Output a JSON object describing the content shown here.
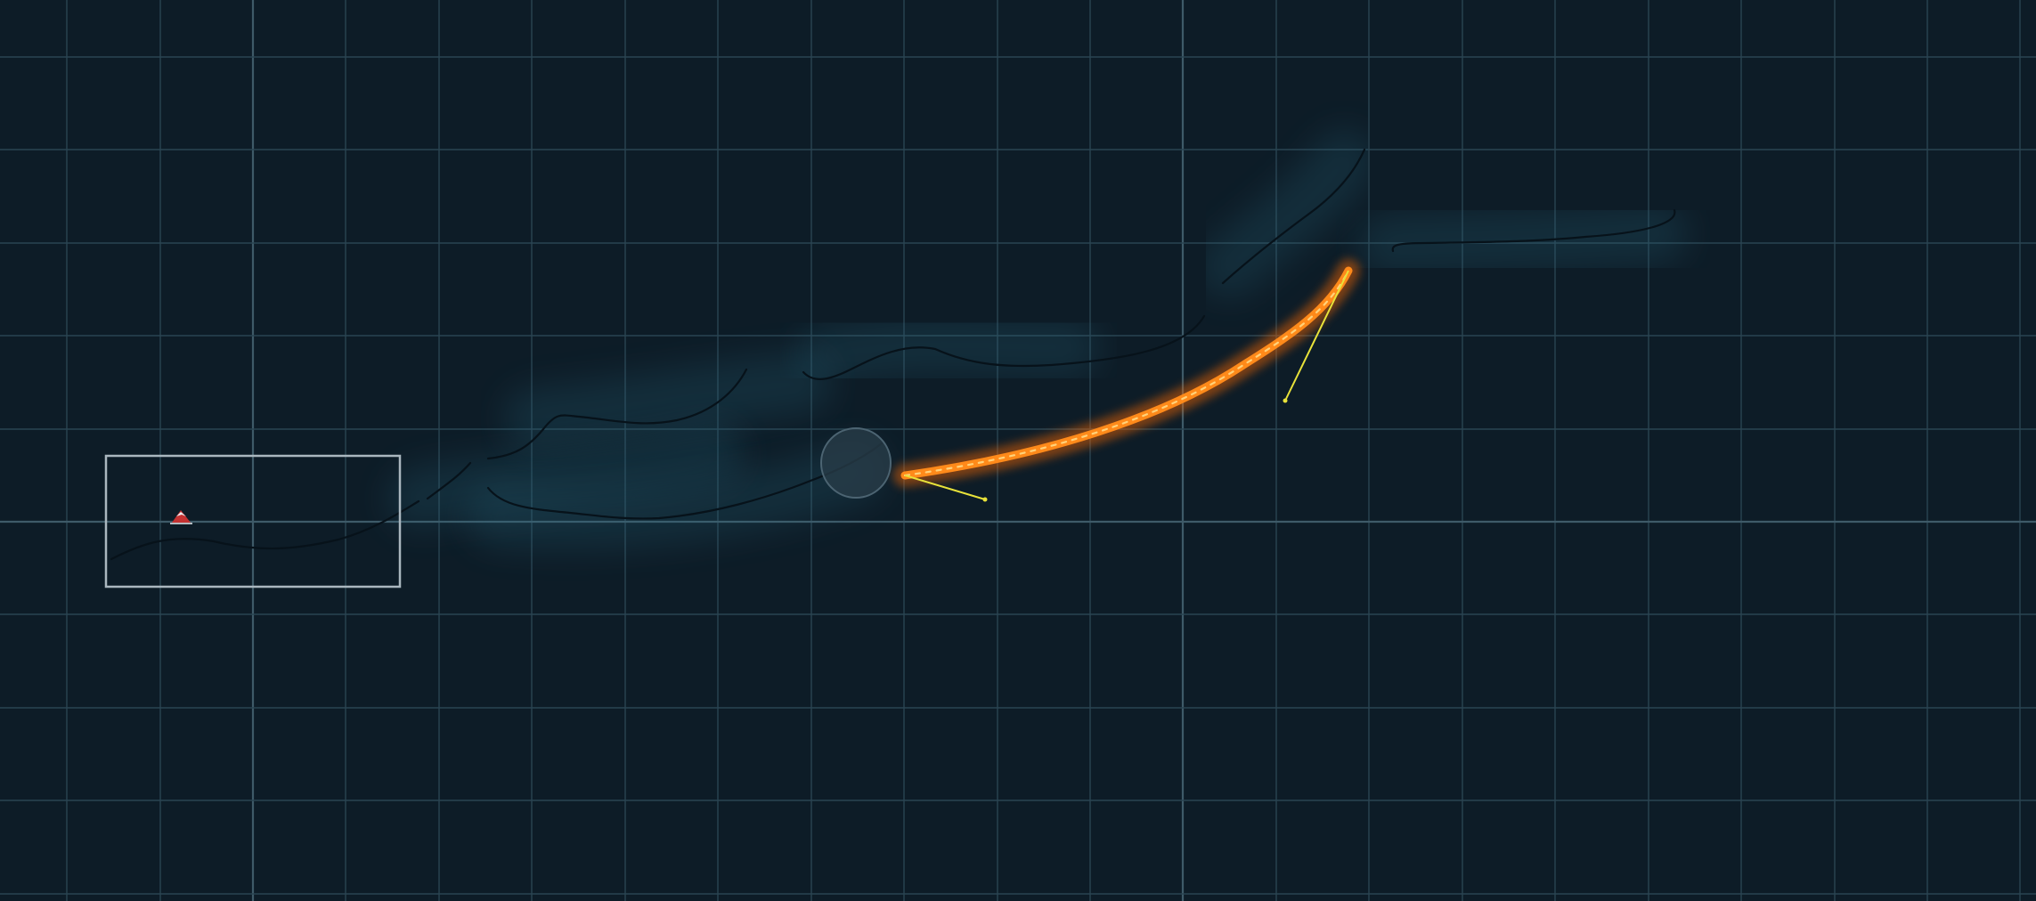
{
  "scene": {
    "background": "#0d1c27",
    "grid_minor_color": "#2a4452",
    "grid_major_color": "#3e5a68",
    "track_line_color": "#07121a",
    "track_glow_color": "#2a6a80",
    "selected_line_color": "#ff8a1a",
    "handle_color": "#e8e23a",
    "rider_color": "#c43232"
  },
  "icons": {
    "rider": "rider-sled-icon",
    "control": "control-point-circle"
  }
}
